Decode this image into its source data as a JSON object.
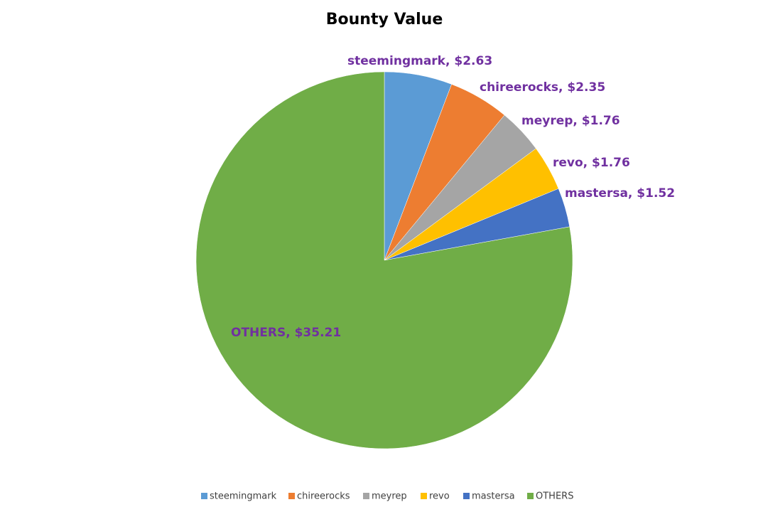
{
  "chart_data": {
    "type": "pie",
    "title": "Bounty Value",
    "categories": [
      "steemingmark",
      "chireerocks",
      "meyrep",
      "revo",
      "mastersa",
      "OTHERS"
    ],
    "values": [
      2.63,
      2.35,
      1.76,
      1.76,
      1.52,
      35.21
    ],
    "value_labels": [
      "steemingmark, $2.63",
      "chireerocks, $2.35",
      "meyrep, $1.76",
      "revo, $1.76",
      "mastersa, $1.52",
      "OTHERS, $35.21"
    ],
    "colors": [
      "#5b9bd5",
      "#ed7d31",
      "#a5a5a5",
      "#ffc000",
      "#4472c4",
      "#70ad47"
    ],
    "legend": "bottom"
  }
}
